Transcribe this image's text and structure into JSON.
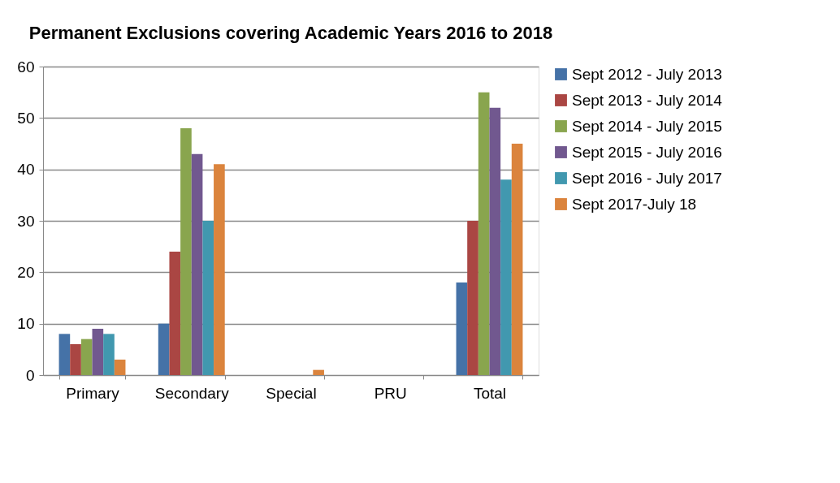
{
  "chart_data": {
    "type": "bar",
    "title": "Permanent Exclusions covering Academic Years 2016 to 2018",
    "categories": [
      "Primary",
      "Secondary",
      "Special",
      "PRU",
      "Total"
    ],
    "series": [
      {
        "name": "Sept 2012 - July 2013",
        "color": "#4572a7",
        "values": [
          8,
          10,
          0,
          0,
          18
        ]
      },
      {
        "name": "Sept 2013 - July 2014",
        "color": "#aa4643",
        "values": [
          6,
          24,
          0,
          0,
          30
        ]
      },
      {
        "name": "Sept 2014 - July 2015",
        "color": "#89a54e",
        "values": [
          7,
          48,
          0,
          0,
          55
        ]
      },
      {
        "name": "Sept 2015 - July 2016",
        "color": "#71588f",
        "values": [
          9,
          43,
          0,
          0,
          52
        ]
      },
      {
        "name": "Sept 2016 - July 2017",
        "color": "#4198af",
        "values": [
          8,
          30,
          0,
          0,
          38
        ]
      },
      {
        "name": "Sept 2017-July 18",
        "color": "#db843d",
        "values": [
          3,
          41,
          1,
          0,
          45
        ]
      }
    ],
    "ylim": [
      0,
      60
    ],
    "yticks": [
      0,
      10,
      20,
      30,
      40,
      50,
      60
    ],
    "grid": "y",
    "legend": "right"
  }
}
